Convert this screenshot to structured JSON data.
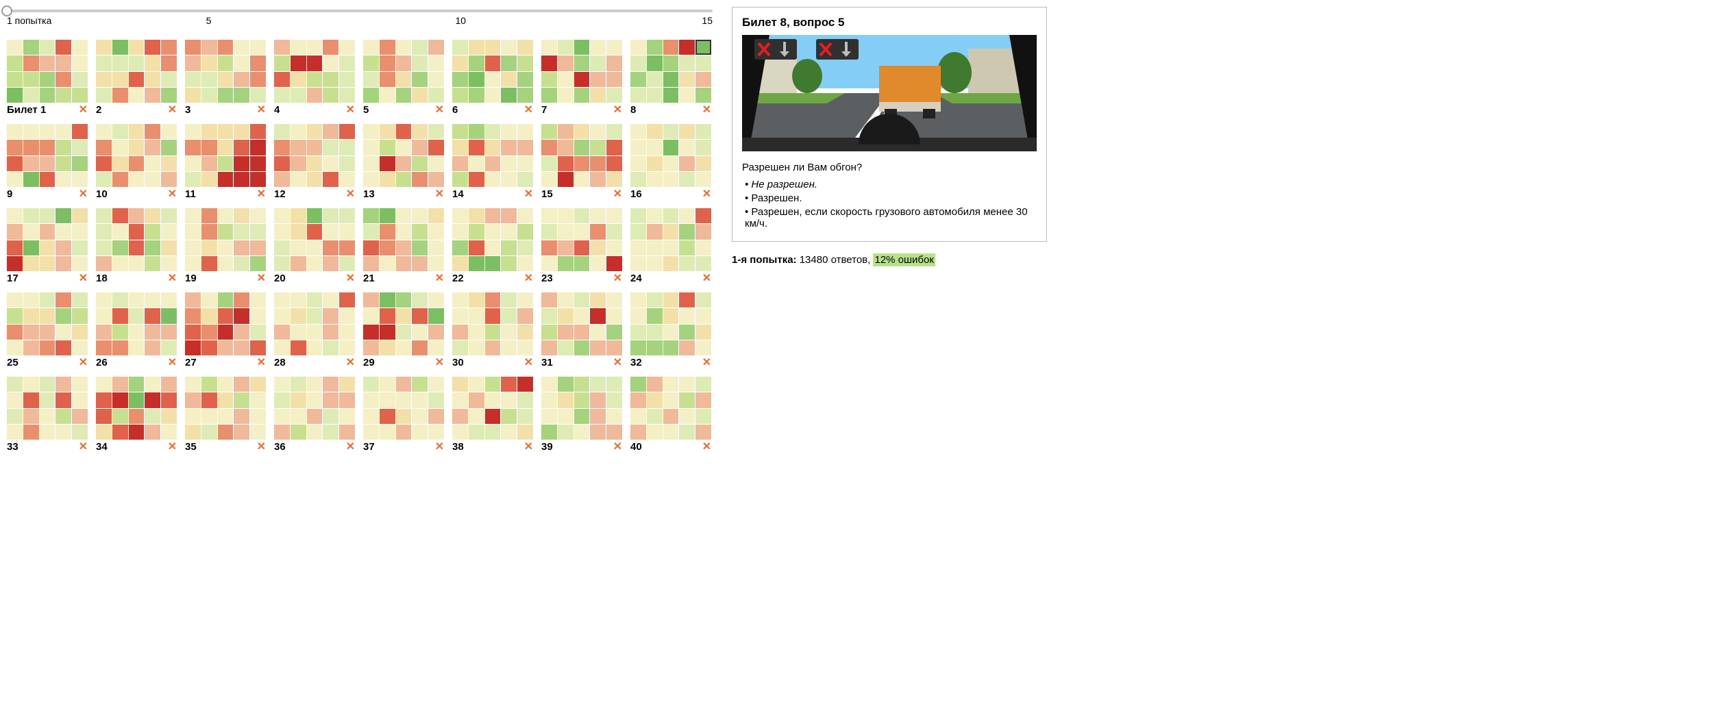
{
  "palette": {
    "heat": [
      "#c62e29",
      "#e1624a",
      "#e98f6e",
      "#f0b99a",
      "#f3e0a8",
      "#f4efc5",
      "#dfebb4",
      "#c6e08f",
      "#a5d37d",
      "#7bbf62"
    ],
    "close_x": "#f26a2e",
    "error_badge_bg": "#b8e28a",
    "slider_line": "#cccccc",
    "panel_border": "#bbbbbb"
  },
  "slider": {
    "min": 1,
    "max": 15,
    "value": 1,
    "ticks": [
      {
        "pos": 0.0,
        "label": "1 попытка"
      },
      {
        "pos": 0.286,
        "label": "5"
      },
      {
        "pos": 0.643,
        "label": "10"
      },
      {
        "pos": 1.0,
        "label": "15"
      }
    ]
  },
  "grid": {
    "cols": 8,
    "ticket_cols": 5,
    "ticket_rows": 4
  },
  "selected_cell": {
    "ticket_index": 7,
    "cell_index": 4
  },
  "tickets": [
    {
      "label": "Билет 1",
      "v": [
        5,
        8,
        6,
        1,
        5,
        7,
        2,
        3,
        3,
        5,
        7,
        7,
        8,
        2,
        6,
        9,
        6,
        8,
        7,
        7
      ]
    },
    {
      "label": "2",
      "v": [
        4,
        9,
        4,
        1,
        2,
        6,
        6,
        6,
        4,
        2,
        4,
        4,
        1,
        4,
        6,
        6,
        2,
        5,
        3,
        8
      ]
    },
    {
      "label": "3",
      "v": [
        2,
        3,
        2,
        5,
        5,
        3,
        4,
        7,
        5,
        2,
        6,
        6,
        4,
        3,
        2,
        4,
        6,
        8,
        8,
        6
      ]
    },
    {
      "label": "4",
      "v": [
        3,
        5,
        5,
        2,
        5,
        7,
        0,
        0,
        5,
        6,
        1,
        4,
        7,
        7,
        6,
        6,
        6,
        3,
        7,
        6
      ]
    },
    {
      "label": "5",
      "v": [
        5,
        2,
        5,
        6,
        3,
        7,
        2,
        3,
        6,
        5,
        6,
        2,
        4,
        8,
        5,
        8,
        5,
        8,
        4,
        6
      ]
    },
    {
      "label": "6",
      "v": [
        6,
        4,
        4,
        5,
        4,
        4,
        8,
        1,
        8,
        7,
        8,
        9,
        5,
        4,
        8,
        7,
        8,
        5,
        9,
        8
      ]
    },
    {
      "label": "7",
      "v": [
        5,
        6,
        9,
        5,
        5,
        0,
        3,
        8,
        6,
        3,
        7,
        5,
        0,
        3,
        3,
        8,
        5,
        8,
        4,
        6
      ]
    },
    {
      "label": "8",
      "v": [
        5,
        8,
        2,
        0,
        9,
        6,
        9,
        8,
        6,
        6,
        8,
        6,
        9,
        4,
        3,
        6,
        6,
        9,
        5,
        8
      ]
    },
    {
      "label": "9",
      "v": [
        5,
        5,
        5,
        5,
        1,
        2,
        2,
        2,
        7,
        6,
        1,
        3,
        3,
        7,
        8,
        5,
        9,
        1,
        5,
        5
      ]
    },
    {
      "label": "10",
      "v": [
        5,
        6,
        4,
        2,
        5,
        2,
        5,
        4,
        3,
        8,
        1,
        4,
        2,
        5,
        4,
        6,
        2,
        5,
        5,
        3
      ]
    },
    {
      "label": "11",
      "v": [
        5,
        4,
        4,
        4,
        1,
        2,
        2,
        4,
        1,
        0,
        5,
        3,
        7,
        0,
        0,
        6,
        4,
        0,
        0,
        0
      ]
    },
    {
      "label": "12",
      "v": [
        6,
        5,
        4,
        3,
        1,
        2,
        3,
        3,
        6,
        6,
        1,
        3,
        4,
        5,
        6,
        3,
        5,
        4,
        1,
        5
      ]
    },
    {
      "label": "13",
      "v": [
        5,
        4,
        1,
        4,
        6,
        5,
        7,
        5,
        3,
        1,
        5,
        0,
        3,
        7,
        5,
        5,
        4,
        7,
        2,
        3
      ]
    },
    {
      "label": "14",
      "v": [
        7,
        8,
        6,
        5,
        5,
        4,
        1,
        4,
        3,
        3,
        3,
        5,
        3,
        5,
        5,
        7,
        1,
        5,
        5,
        6
      ]
    },
    {
      "label": "15",
      "v": [
        7,
        3,
        4,
        5,
        6,
        2,
        3,
        8,
        7,
        1,
        6,
        1,
        2,
        2,
        1,
        5,
        0,
        5,
        3,
        4
      ]
    },
    {
      "label": "16",
      "v": [
        5,
        4,
        6,
        4,
        6,
        5,
        5,
        9,
        5,
        6,
        5,
        4,
        5,
        3,
        4,
        6,
        5,
        5,
        6,
        5
      ]
    },
    {
      "label": "17",
      "v": [
        5,
        6,
        6,
        9,
        4,
        3,
        5,
        3,
        5,
        5,
        1,
        9,
        4,
        3,
        6,
        0,
        4,
        4,
        3,
        5
      ]
    },
    {
      "label": "18",
      "v": [
        6,
        1,
        3,
        4,
        6,
        6,
        5,
        1,
        7,
        5,
        6,
        8,
        1,
        8,
        4,
        3,
        5,
        5,
        7,
        5
      ]
    },
    {
      "label": "19",
      "v": [
        5,
        2,
        5,
        4,
        5,
        5,
        2,
        7,
        6,
        6,
        5,
        4,
        5,
        3,
        3,
        5,
        1,
        5,
        6,
        8
      ]
    },
    {
      "label": "20",
      "v": [
        5,
        4,
        9,
        6,
        6,
        5,
        4,
        1,
        5,
        5,
        6,
        5,
        5,
        2,
        2,
        6,
        3,
        5,
        3,
        6
      ]
    },
    {
      "label": "21",
      "v": [
        8,
        9,
        5,
        5,
        4,
        6,
        2,
        5,
        7,
        5,
        1,
        2,
        3,
        8,
        5,
        3,
        5,
        3,
        3,
        5
      ]
    },
    {
      "label": "22",
      "v": [
        5,
        4,
        3,
        3,
        5,
        5,
        7,
        5,
        5,
        7,
        8,
        1,
        5,
        7,
        6,
        4,
        9,
        9,
        7,
        5
      ]
    },
    {
      "label": "23",
      "v": [
        5,
        5,
        6,
        5,
        5,
        6,
        5,
        5,
        2,
        6,
        2,
        3,
        1,
        4,
        5,
        5,
        8,
        8,
        5,
        0
      ]
    },
    {
      "label": "24",
      "v": [
        6,
        5,
        6,
        5,
        1,
        6,
        3,
        4,
        8,
        3,
        5,
        5,
        5,
        7,
        5,
        5,
        5,
        4,
        6,
        6
      ]
    },
    {
      "label": "25",
      "v": [
        5,
        5,
        6,
        2,
        6,
        7,
        4,
        4,
        8,
        7,
        2,
        3,
        3,
        5,
        4,
        5,
        3,
        2,
        1,
        5
      ]
    },
    {
      "label": "26",
      "v": [
        5,
        6,
        5,
        5,
        5,
        5,
        1,
        6,
        1,
        9,
        3,
        7,
        5,
        3,
        3,
        2,
        2,
        5,
        3,
        6
      ]
    },
    {
      "label": "27",
      "v": [
        3,
        5,
        8,
        2,
        5,
        2,
        4,
        1,
        0,
        5,
        1,
        2,
        0,
        3,
        6,
        0,
        1,
        3,
        3,
        1
      ]
    },
    {
      "label": "28",
      "v": [
        5,
        5,
        6,
        5,
        1,
        5,
        4,
        6,
        3,
        5,
        3,
        5,
        5,
        3,
        5,
        5,
        1,
        5,
        6,
        5
      ]
    },
    {
      "label": "29",
      "v": [
        3,
        9,
        8,
        6,
        5,
        5,
        1,
        4,
        1,
        9,
        0,
        0,
        6,
        5,
        3,
        3,
        4,
        5,
        2,
        5
      ]
    },
    {
      "label": "30",
      "v": [
        5,
        4,
        2,
        6,
        5,
        5,
        5,
        1,
        6,
        3,
        3,
        5,
        7,
        5,
        4,
        6,
        5,
        3,
        5,
        5
      ]
    },
    {
      "label": "31",
      "v": [
        3,
        5,
        6,
        4,
        5,
        6,
        4,
        5,
        0,
        5,
        7,
        3,
        3,
        5,
        8,
        3,
        6,
        8,
        3,
        3
      ]
    },
    {
      "label": "32",
      "v": [
        5,
        6,
        4,
        1,
        6,
        5,
        8,
        4,
        5,
        5,
        6,
        6,
        5,
        8,
        4,
        8,
        8,
        8,
        3,
        5
      ]
    },
    {
      "label": "33",
      "v": [
        6,
        5,
        6,
        3,
        5,
        5,
        1,
        6,
        1,
        5,
        6,
        3,
        5,
        7,
        3,
        5,
        2,
        5,
        5,
        6
      ]
    },
    {
      "label": "34",
      "v": [
        5,
        3,
        8,
        5,
        3,
        1,
        0,
        9,
        0,
        1,
        1,
        7,
        2,
        6,
        4,
        4,
        1,
        0,
        3,
        5
      ]
    },
    {
      "label": "35",
      "v": [
        5,
        7,
        5,
        3,
        4,
        3,
        1,
        4,
        7,
        5,
        5,
        5,
        5,
        3,
        5,
        4,
        6,
        2,
        3,
        5
      ]
    },
    {
      "label": "36",
      "v": [
        5,
        6,
        5,
        3,
        4,
        6,
        4,
        5,
        3,
        3,
        5,
        5,
        3,
        6,
        5,
        3,
        7,
        5,
        6,
        3
      ]
    },
    {
      "label": "37",
      "v": [
        6,
        5,
        3,
        7,
        5,
        5,
        5,
        5,
        5,
        6,
        5,
        1,
        4,
        5,
        3,
        5,
        5,
        3,
        5,
        5
      ]
    },
    {
      "label": "38",
      "v": [
        4,
        5,
        7,
        1,
        0,
        5,
        3,
        5,
        5,
        6,
        3,
        5,
        0,
        7,
        6,
        5,
        6,
        6,
        5,
        4
      ]
    },
    {
      "label": "39",
      "v": [
        5,
        8,
        7,
        6,
        6,
        5,
        4,
        7,
        3,
        6,
        5,
        5,
        8,
        3,
        5,
        8,
        6,
        5,
        3,
        3
      ]
    },
    {
      "label": "40",
      "v": [
        8,
        3,
        5,
        5,
        6,
        3,
        4,
        5,
        7,
        3,
        5,
        6,
        3,
        5,
        6,
        3,
        5,
        5,
        6,
        3
      ]
    }
  ],
  "detail": {
    "title": "Билет 8, вопрос 5",
    "question": "Разрешен ли Вам обгон?",
    "answers": [
      {
        "text": "Не разрешен.",
        "correct": true
      },
      {
        "text": "Разрешен.",
        "correct": false
      },
      {
        "text": "Разрешен, если скорость грузового автомобиля менее 30 км/ч.",
        "correct": false
      }
    ],
    "scene": {
      "sky": "#84cdf4",
      "road": "#5c5f61",
      "grass": "#6ea545",
      "building1": "#d9d7c2",
      "building2": "#cfc8b0",
      "truck_body": "#e08a2b",
      "truck_cab": "#d9cfc0",
      "truck_wheel": "#222222",
      "lane_line": "#ffffff",
      "sign_bg": "#303030",
      "sign_x": "#e21f1f",
      "sign_arrow": "#bdbdbd"
    }
  },
  "stats": {
    "prefix": "1-я попытка:",
    "answers_count": "13480 ответов,",
    "errors": "12% ошибок"
  }
}
